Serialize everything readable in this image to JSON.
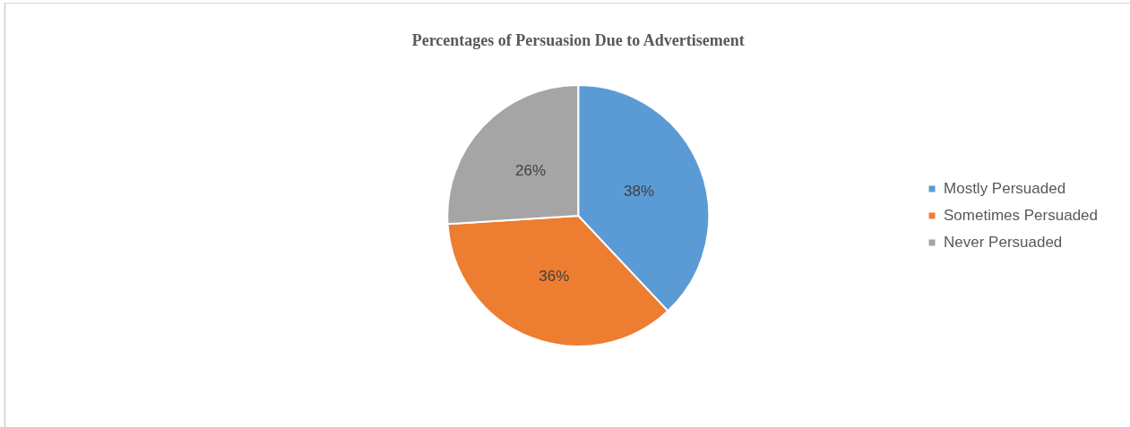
{
  "chart_data": {
    "type": "pie",
    "title": "Percentages of Persuasion Due to Advertisement",
    "categories": [
      "Mostly Persuaded",
      "Sometimes Persuaded",
      "Never Persuaded"
    ],
    "values": [
      38,
      36,
      26
    ],
    "value_labels": [
      "38%",
      "36%",
      "26%"
    ],
    "colors": [
      "#5b9bd5",
      "#ed7d31",
      "#a5a5a5"
    ],
    "legend": "right"
  }
}
